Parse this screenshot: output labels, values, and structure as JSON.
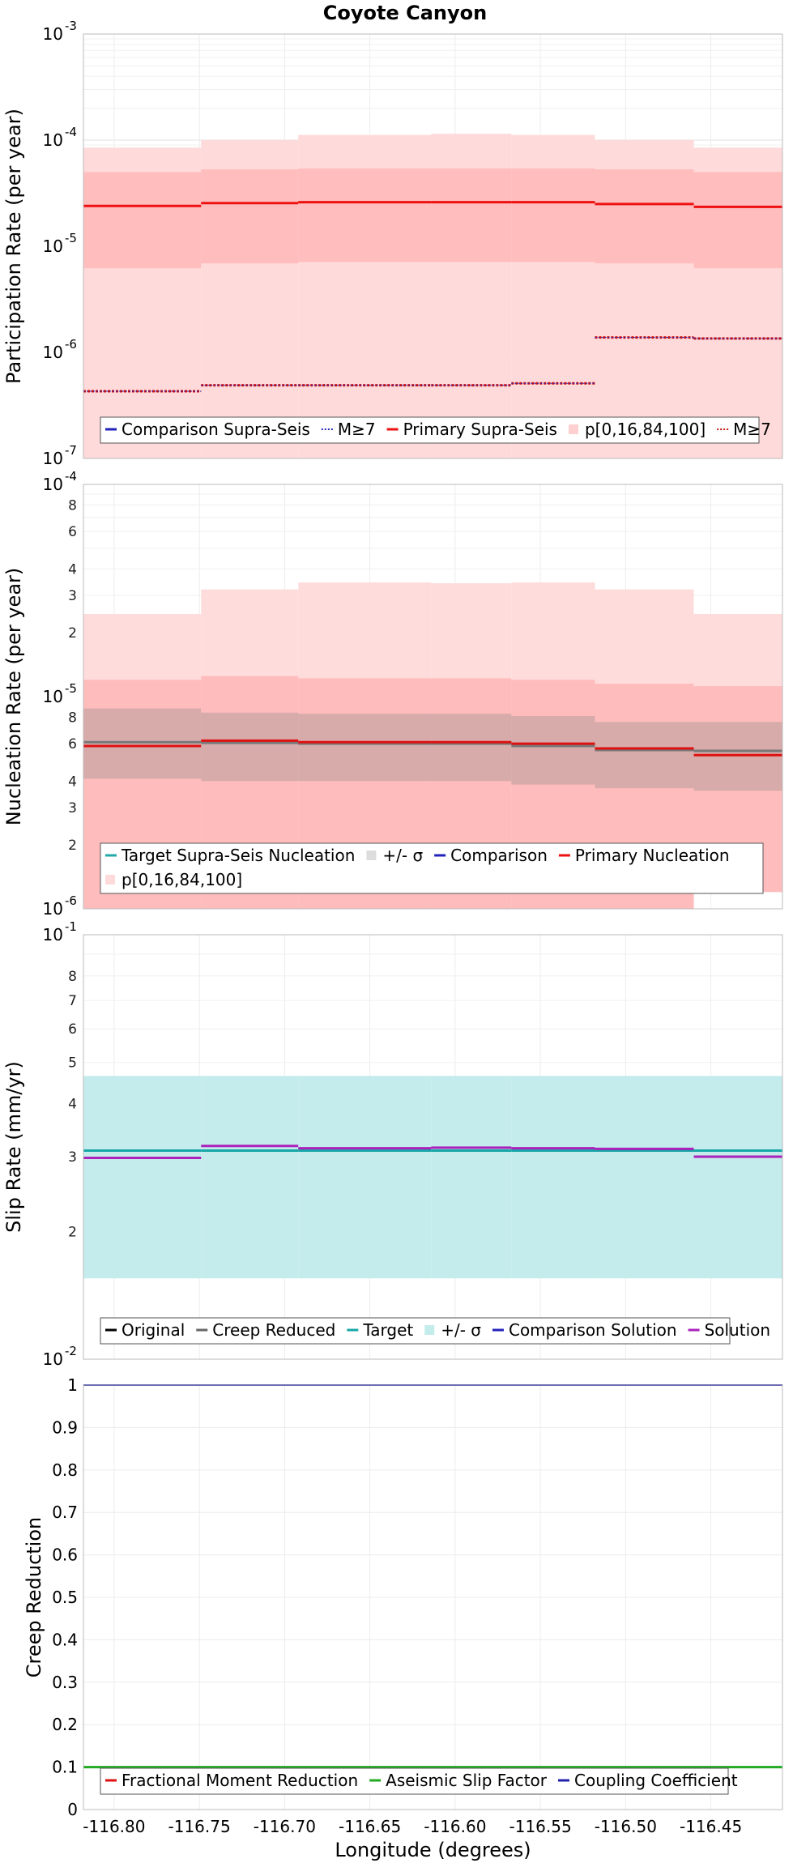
{
  "figure": {
    "title": "Coyote Canyon"
  },
  "chart_data": [
    {
      "type": "line",
      "name": "participation",
      "ylabel": "Participation Rate (per year)",
      "yscale": "log",
      "ylim": [
        1e-07,
        0.001
      ],
      "xlim": [
        -116.818,
        -116.408
      ],
      "segments_x": [
        -116.818,
        -116.749,
        -116.692,
        -116.614,
        -116.567,
        -116.518,
        -116.46,
        -116.408
      ],
      "series": [
        {
          "name": "p[0,16,84,100]",
          "kind": "band",
          "lo": [
            1e-07,
            1e-07,
            1e-07,
            1e-07,
            1e-07,
            1e-07,
            1e-07
          ],
          "hi": [
            8.5e-05,
            0.0001,
            0.000112,
            0.000115,
            0.000112,
            0.0001,
            8.5e-05
          ],
          "color": "#ffdada"
        },
        {
          "name": "p[0,16,84,100]",
          "kind": "band",
          "lo": [
            6.2e-06,
            6.9e-06,
            7.1e-06,
            7.1e-06,
            7.1e-06,
            6.9e-06,
            6.2e-06
          ],
          "hi": [
            5e-05,
            5.3e-05,
            5.4e-05,
            5.4e-05,
            5.4e-05,
            5.3e-05,
            5e-05
          ],
          "color": "#ffbdbd"
        },
        {
          "name": "Primary Supra-Seis",
          "kind": "step",
          "values": [
            2.4e-05,
            2.55e-05,
            2.6e-05,
            2.6e-05,
            2.6e-05,
            2.5e-05,
            2.35e-05
          ],
          "color": "#ee1111",
          "width": 3
        },
        {
          "name": "M≥7",
          "kind": "step",
          "values": [
            4.3e-07,
            4.9e-07,
            4.9e-07,
            4.9e-07,
            5.1e-07,
            1.38e-06,
            1.35e-06
          ],
          "color": "#cc1111",
          "width": 3,
          "dash": "3,2"
        },
        {
          "name": "M≥7",
          "kind": "step",
          "values": [
            4.3e-07,
            4.9e-07,
            4.9e-07,
            4.9e-07,
            5.1e-07,
            1.38e-06,
            1.35e-06
          ],
          "color": "#2222bb",
          "width": 1,
          "dash": "2,2"
        }
      ],
      "legend": {
        "placement": "bottom",
        "entries": [
          {
            "label": "Comparison Supra-Seis",
            "swatch": "line",
            "color": "#2222bb"
          },
          {
            "label": "M≥7",
            "swatch": "dotted",
            "color": "#2222bb"
          },
          {
            "label": "Primary Supra-Seis",
            "swatch": "line",
            "color": "#ee1111"
          },
          {
            "label": "p[0,16,84,100]",
            "swatch": "box",
            "color": "#ffd0d0"
          },
          {
            "label": "M≥7",
            "swatch": "dotted",
            "color": "#cc1111"
          }
        ]
      }
    },
    {
      "type": "line",
      "name": "nucleation",
      "ylabel": "Nucleation Rate (per year)",
      "yscale": "log",
      "ylim": [
        1e-06,
        0.0001
      ],
      "xlim": [
        -116.818,
        -116.408
      ],
      "segments_x": [
        -116.818,
        -116.749,
        -116.692,
        -116.614,
        -116.567,
        -116.518,
        -116.46,
        -116.408
      ],
      "series": [
        {
          "name": "p[0,16,84,100]",
          "kind": "band",
          "lo": [
            1e-06,
            1e-06,
            1e-06,
            1e-06,
            1e-06,
            1e-06,
            1.2e-06
          ],
          "hi": [
            2.45e-05,
            3.2e-05,
            3.45e-05,
            3.42e-05,
            3.45e-05,
            3.2e-05,
            2.45e-05
          ],
          "color": "#ffdcdc"
        },
        {
          "name": "p[0,16,84,100]",
          "kind": "band",
          "lo": [
            1e-06,
            1e-06,
            1e-06,
            1e-06,
            1e-06,
            1e-06,
            1.2e-06
          ],
          "hi": [
            1.2e-05,
            1.25e-05,
            1.22e-05,
            1.22e-05,
            1.2e-05,
            1.15e-05,
            1.12e-05
          ],
          "color": "#ffbcbc"
        },
        {
          "name": "+/- σ",
          "kind": "band",
          "lo": [
            4.1e-06,
            4e-06,
            4e-06,
            4e-06,
            3.85e-06,
            3.7e-06,
            3.6e-06
          ],
          "hi": [
            8.8e-06,
            8.4e-06,
            8.3e-06,
            8.3e-06,
            8.1e-06,
            7.6e-06,
            7.6e-06
          ],
          "color": "#8a8a8a",
          "opacity": 0.33
        },
        {
          "name": "Target Supra-Seis Nucleation",
          "kind": "step",
          "values": [
            6.1e-06,
            6.05e-06,
            6e-06,
            6e-06,
            5.85e-06,
            5.6e-06,
            5.55e-06
          ],
          "color": "#777777",
          "width": 3
        },
        {
          "name": "Primary Nucleation",
          "kind": "step",
          "values": [
            5.85e-06,
            6.2e-06,
            6.1e-06,
            6.1e-06,
            6e-06,
            5.7e-06,
            5.3e-06
          ],
          "color": "#dd1111",
          "width": 3
        }
      ],
      "legend": {
        "placement": "bottom",
        "entries": [
          {
            "label": "Target Supra-Seis Nucleation",
            "swatch": "line",
            "color": "#22aaaa"
          },
          {
            "label": "+/- σ",
            "swatch": "box",
            "color": "#dddddd"
          },
          {
            "label": "Comparison",
            "swatch": "line",
            "color": "#2222bb"
          },
          {
            "label": "Primary Nucleation",
            "swatch": "line",
            "color": "#ee1111"
          },
          {
            "label": "p[0,16,84,100]",
            "swatch": "box",
            "color": "#ffdada"
          }
        ]
      }
    },
    {
      "type": "line",
      "name": "slip",
      "ylabel": "Slip Rate (mm/yr)",
      "yscale": "log",
      "ylim": [
        0.01,
        0.1
      ],
      "xlim": [
        -116.818,
        -116.408
      ],
      "segments_x": [
        -116.818,
        -116.749,
        -116.692,
        -116.614,
        -116.567,
        -116.518,
        -116.46,
        -116.408
      ],
      "series": [
        {
          "name": "+/- σ",
          "kind": "band",
          "lo": [
            0.0155,
            0.0155,
            0.0155,
            0.0155,
            0.0155,
            0.0155,
            0.0155
          ],
          "hi": [
            0.0465,
            0.0465,
            0.0465,
            0.0465,
            0.0465,
            0.0465,
            0.0465
          ],
          "color": "#c4ecec"
        },
        {
          "name": "Target",
          "kind": "step",
          "values": [
            0.031,
            0.031,
            0.031,
            0.031,
            0.031,
            0.031,
            0.031
          ],
          "color": "#17a7a7",
          "width": 3
        },
        {
          "name": "Solution",
          "kind": "step",
          "values": [
            0.0298,
            0.0318,
            0.0314,
            0.0315,
            0.0314,
            0.0313,
            0.03
          ],
          "color": "#aa22bb",
          "width": 3
        }
      ],
      "legend": {
        "placement": "bottom",
        "entries": [
          {
            "label": "Original",
            "swatch": "line",
            "color": "#000000"
          },
          {
            "label": "Creep Reduced",
            "swatch": "line",
            "color": "#666666"
          },
          {
            "label": "Target",
            "swatch": "line",
            "color": "#17a7a7"
          },
          {
            "label": "+/- σ",
            "swatch": "box",
            "color": "#c4ecec"
          },
          {
            "label": "Comparison Solution",
            "swatch": "line",
            "color": "#2222bb"
          },
          {
            "label": "Solution",
            "swatch": "line",
            "color": "#aa22bb"
          }
        ]
      }
    },
    {
      "type": "line",
      "name": "creep",
      "ylabel": "Creep Reduction",
      "yscale": "linear",
      "ylim": [
        0,
        1
      ],
      "xlim": [
        -116.818,
        -116.408
      ],
      "xlabel": "Longitude (degrees)",
      "xticks": [
        "-116.80",
        "-116.75",
        "-116.70",
        "-116.65",
        "-116.60",
        "-116.55",
        "-116.50",
        "-116.45"
      ],
      "segments_x": [
        -116.818,
        -116.408
      ],
      "series": [
        {
          "name": "Coupling Coefficient",
          "kind": "step",
          "values": [
            1.0
          ],
          "color": "#2222aa",
          "width": 2
        },
        {
          "name": "Aseismic Slip Factor",
          "kind": "step",
          "values": [
            0.1
          ],
          "color": "#22aa22",
          "width": 3
        }
      ],
      "legend": {
        "placement": "bottom",
        "entries": [
          {
            "label": "Fractional Moment Reduction",
            "swatch": "line",
            "color": "#dd1111"
          },
          {
            "label": "Aseismic Slip Factor",
            "swatch": "line",
            "color": "#22aa22"
          },
          {
            "label": "Coupling Coefficient",
            "swatch": "line",
            "color": "#2222aa"
          }
        ]
      }
    }
  ]
}
